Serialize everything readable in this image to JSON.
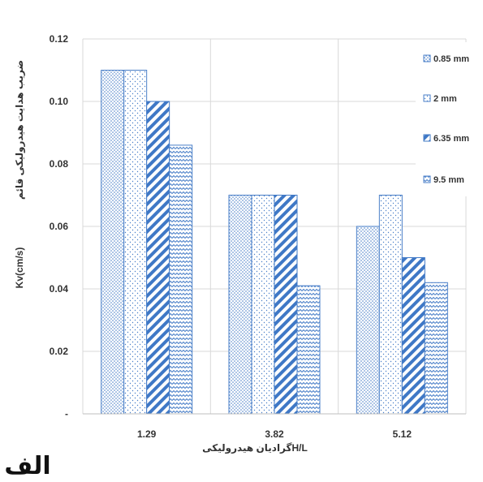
{
  "chart_data": {
    "type": "bar",
    "categories": [
      "1.29",
      "3.82",
      "5.12"
    ],
    "series": [
      {
        "name": "0.85 mm",
        "values": [
          0.11,
          0.07,
          0.06
        ],
        "pattern": "dots",
        "color": "#4a7fc8"
      },
      {
        "name": "2 mm",
        "values": [
          0.11,
          0.07,
          0.07
        ],
        "pattern": "sparse-dots",
        "color": "#4a7fc8"
      },
      {
        "name": "6.35 mm",
        "values": [
          0.1,
          0.07,
          0.05
        ],
        "pattern": "diagonal",
        "color": "#3f78c6"
      },
      {
        "name": "9.5 mm",
        "values": [
          0.086,
          0.041,
          0.042
        ],
        "pattern": "zigzag",
        "color": "#4a7fc8"
      }
    ],
    "y_ticks": [
      {
        "value": 0,
        "label": "-"
      },
      {
        "value": 0.02,
        "label": "0.02"
      },
      {
        "value": 0.04,
        "label": "0.04"
      },
      {
        "value": 0.06,
        "label": "0.06"
      },
      {
        "value": 0.08,
        "label": "0.08"
      },
      {
        "value": 0.1,
        "label": "0.10"
      },
      {
        "value": 0.12,
        "label": "0.12"
      }
    ],
    "ylim": [
      0,
      0.12
    ],
    "xlabel": "گرادیان هیدرولیکیH/L",
    "ylabel_en": "Kv(cm/s)",
    "ylabel_fa": "ضریب هدایت هیدرولیکی قائم",
    "legend_position": "right",
    "grid": "y and x gridlines",
    "caption": "الف"
  }
}
